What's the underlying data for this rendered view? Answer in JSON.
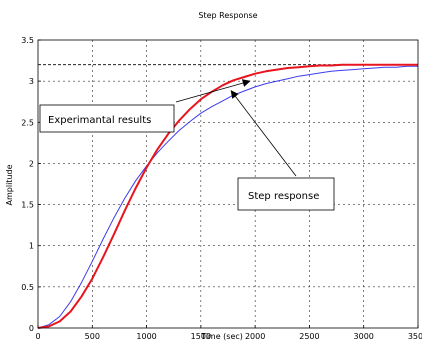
{
  "chart_data": {
    "type": "line",
    "title": "Step Response",
    "xlabel": "Time (sec)",
    "ylabel": "Amplitude",
    "xlim": [
      0,
      3500
    ],
    "ylim": [
      0,
      3.5
    ],
    "x_ticks": [
      "0",
      "500",
      "1000",
      "1500",
      "2000",
      "2500",
      "3000",
      "3500"
    ],
    "y_ticks": [
      "0",
      "0.5",
      "1",
      "1.5",
      "2",
      "2.5",
      "3",
      "3.5"
    ],
    "grid": true,
    "reference_line": {
      "y": 3.2,
      "style": "dashed",
      "color": "#000000"
    },
    "series": [
      {
        "name": "Experimantal results",
        "color": "#e8141e",
        "x": [
          0,
          100,
          200,
          300,
          400,
          500,
          600,
          700,
          800,
          900,
          1000,
          1100,
          1200,
          1300,
          1400,
          1500,
          1600,
          1700,
          1800,
          1900,
          2000,
          2100,
          2200,
          2300,
          2400,
          2500,
          2600,
          2700,
          2800,
          2900,
          3000,
          3100,
          3200,
          3300,
          3400,
          3500
        ],
        "y": [
          0.0,
          0.02,
          0.08,
          0.2,
          0.38,
          0.6,
          0.86,
          1.14,
          1.43,
          1.7,
          1.95,
          2.17,
          2.36,
          2.52,
          2.66,
          2.78,
          2.87,
          2.95,
          3.01,
          3.05,
          3.09,
          3.12,
          3.14,
          3.16,
          3.17,
          3.18,
          3.19,
          3.19,
          3.2,
          3.2,
          3.2,
          3.2,
          3.2,
          3.2,
          3.2,
          3.2
        ]
      },
      {
        "name": "Step response",
        "color": "#3c3cf0",
        "x": [
          0,
          100,
          200,
          300,
          400,
          500,
          600,
          700,
          800,
          900,
          1000,
          1100,
          1200,
          1300,
          1400,
          1500,
          1600,
          1700,
          1800,
          1900,
          2000,
          2100,
          2200,
          2300,
          2400,
          2500,
          2600,
          2700,
          2800,
          2900,
          3000,
          3100,
          3200,
          3300,
          3400,
          3500
        ],
        "y": [
          0.0,
          0.04,
          0.14,
          0.32,
          0.55,
          0.81,
          1.08,
          1.34,
          1.58,
          1.79,
          1.97,
          2.13,
          2.27,
          2.4,
          2.51,
          2.61,
          2.69,
          2.76,
          2.83,
          2.88,
          2.93,
          2.97,
          3.0,
          3.03,
          3.06,
          3.08,
          3.1,
          3.12,
          3.13,
          3.14,
          3.15,
          3.16,
          3.17,
          3.17,
          3.18,
          3.18
        ]
      }
    ],
    "annotations": [
      {
        "text": "Experimantal results",
        "target": {
          "x": 1950,
          "y": 3.0
        }
      },
      {
        "text": "Step response",
        "target": {
          "x": 1780,
          "y": 2.93
        }
      }
    ]
  }
}
